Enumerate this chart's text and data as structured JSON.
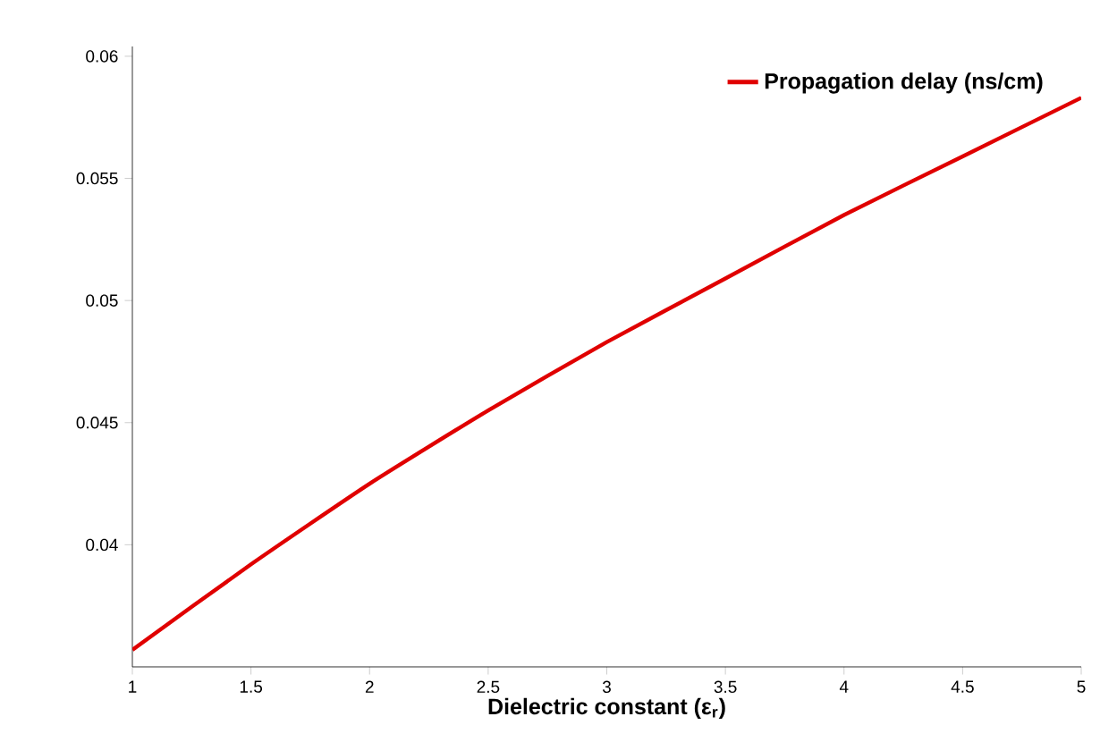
{
  "chart_data": {
    "type": "line",
    "xlabel": "Dielectric constant (ε$_{r}$)",
    "x": [
      1,
      1.5,
      2,
      2.5,
      3,
      3.5,
      4,
      4.5,
      5
    ],
    "series": [
      {
        "name": "Propagation delay (ns/cm)",
        "color": "#e00000",
        "values": [
          0.0357,
          0.0392,
          0.0425,
          0.0455,
          0.0483,
          0.0509,
          0.0535,
          0.0559,
          0.0583
        ]
      }
    ],
    "xlim": [
      1,
      5
    ],
    "ylim": [
      0.035,
      0.0604
    ],
    "xticks": [
      1,
      1.5,
      2,
      2.5,
      3,
      3.5,
      4,
      4.5,
      5
    ],
    "yticks": [
      0.04,
      0.045,
      0.05,
      0.055,
      0.06
    ],
    "grid": false,
    "legend": "top right",
    "marker": "none",
    "line_style": "solid"
  }
}
